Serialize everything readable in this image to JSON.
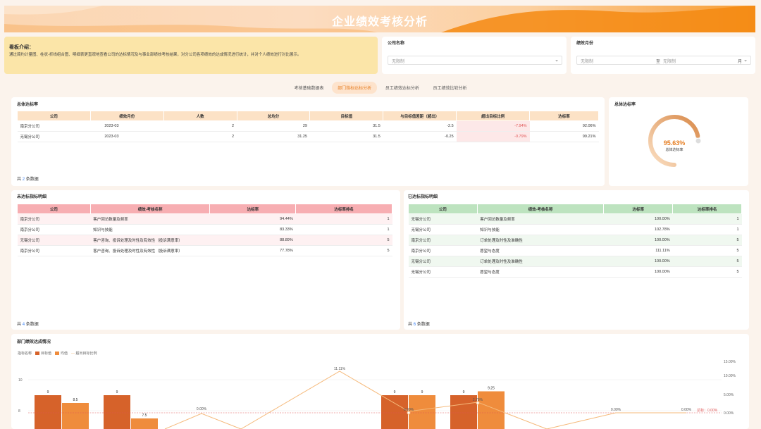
{
  "header": {
    "title": "企业绩效考核分析"
  },
  "intro": {
    "heading": "看板介绍：",
    "text": "通过简约计量图、柱状-折线组合图、明细表更直观地查看公司的达标情况及与事业部绩效考核结果，对分公司各项绩效的达成情况进行统计，并对个人绩效进行对比展示。"
  },
  "filters": {
    "company_label": "公司名称",
    "company_value": "无限制",
    "month_label": "绩效月份",
    "month_from": "无限制",
    "month_to_prefix": "至",
    "month_to": "无限制",
    "month_unit": "月"
  },
  "tabs": [
    "考核基础数据表",
    "部门指标达标分析",
    "员工绩效达标分析",
    "员工绩效比较分析"
  ],
  "overall": {
    "title": "总体达标率",
    "columns": [
      "公司",
      "绩效月份",
      "人数",
      "总均分",
      "目标值",
      "与目标值差距（超出）",
      "超出目标比例",
      "达标率"
    ],
    "rows": [
      [
        "南京分公司",
        "2023-03",
        "2",
        "29",
        "31.5",
        "-2.5",
        "-7.94%",
        "92.06%"
      ],
      [
        "无锡分公司",
        "2023-03",
        "2",
        "31.25",
        "31.5",
        "-0.25",
        "-0.79%",
        "99.21%"
      ]
    ],
    "count_prefix": "共",
    "count": "2",
    "count_suffix": "条数据"
  },
  "gauge": {
    "title": "总体达标率",
    "value": "95.63%",
    "fraction": 0.9563,
    "label": "总体达标率"
  },
  "unmet": {
    "title": "未达标指标明细",
    "columns": [
      "公司",
      "绩效-考核名称",
      "达标率",
      "达标率排名"
    ],
    "rows": [
      [
        "南京分公司",
        "客户回访数量及频率",
        "94.44%",
        "1"
      ],
      [
        "南京分公司",
        "知识与技能",
        "83.33%",
        "1"
      ],
      [
        "无锡分公司",
        "客户咨询、投诉处理及时性及有效性（投诉满意率）",
        "88.89%",
        "5"
      ],
      [
        "南京分公司",
        "客户咨询、投诉处理及时性及有效性（投诉满意率）",
        "77.78%",
        "5"
      ]
    ],
    "count_prefix": "共",
    "count": "4",
    "count_suffix": "条数据"
  },
  "met": {
    "title": "已达标指标明细",
    "columns": [
      "公司",
      "绩效-考核名称",
      "达标率",
      "达标率排名"
    ],
    "rows": [
      [
        "无锡分公司",
        "客户回访数量及频率",
        "100.00%",
        "1"
      ],
      [
        "无锡分公司",
        "知识与技能",
        "102.78%",
        "1"
      ],
      [
        "南京分公司",
        "订单处理及时性及准确性",
        "100.00%",
        "5"
      ],
      [
        "南京分公司",
        "愿望与态度",
        "111.11%",
        "5"
      ],
      [
        "无锡分公司",
        "订单处理及时性及准确性",
        "100.00%",
        "5"
      ],
      [
        "无锡分公司",
        "愿望与态度",
        "100.00%",
        "5"
      ]
    ],
    "count_prefix": "共",
    "count": "6",
    "count_suffix": "条数据"
  },
  "bottom_chart_title": "部门绩效达成情况",
  "chart_data": {
    "type": "bar",
    "legend_title": "指标名称",
    "series": [
      {
        "name": "目标值",
        "color": "#d6622a"
      },
      {
        "name": "均值",
        "color": "#ef8c3c"
      },
      {
        "name": "超出目标比例",
        "color": "#f5b97a"
      }
    ],
    "y_ticks": [
      "10",
      "8"
    ],
    "y2_ticks": [
      "15.00%",
      "10.00%",
      "5.00%",
      "0.00%"
    ],
    "groups": [
      {
        "target": 9,
        "mean": 8.5,
        "labels": [
          "9",
          "8.5"
        ]
      },
      {
        "target": 9,
        "mean": 7.5,
        "labels": [
          "9",
          "7.5"
        ]
      },
      {
        "target": 9,
        "mean": 9,
        "labels": [
          "9",
          "9"
        ]
      },
      {
        "target": 9,
        "mean": 9.25,
        "labels": [
          "9",
          "9.25"
        ]
      }
    ],
    "line_labels": [
      "0.00%",
      "11.11%",
      "0.00%",
      "2.78%",
      "0.00%",
      "0.00%"
    ],
    "ref_label": "达标：0.00%"
  }
}
